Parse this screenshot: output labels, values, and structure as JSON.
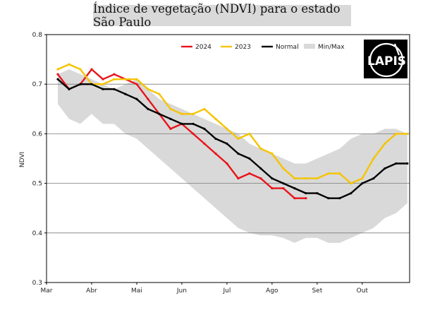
{
  "chart_data": {
    "type": "line",
    "title": "Índice de vegetação (NDVI) para o estado São Paulo",
    "ylabel": "NDVI",
    "xlabel": "",
    "ylim": [
      0.3,
      0.8
    ],
    "xlim": [
      0,
      8.05
    ],
    "yticks": [
      0.3,
      0.4,
      0.5,
      0.6,
      0.7,
      0.8
    ],
    "ytick_labels": [
      "0.3",
      "0.4",
      "0.5",
      "0.6",
      "0.7",
      "0.8"
    ],
    "xticks": [
      0,
      1,
      2,
      3,
      4,
      5,
      6,
      7
    ],
    "xtick_labels": [
      "Mar",
      "Abr",
      "Mai",
      "Jun",
      "Jul",
      "Ago",
      "Set",
      "Out"
    ],
    "grid": "horizontal",
    "legend_position": "top-right",
    "band": {
      "name": "Min/Max",
      "color": "#d9d9d9",
      "x": [
        0.25,
        0.5,
        0.75,
        1.0,
        1.25,
        1.5,
        1.75,
        2.0,
        2.25,
        2.5,
        2.75,
        3.0,
        3.25,
        3.5,
        3.75,
        4.0,
        4.25,
        4.5,
        4.75,
        5.0,
        5.25,
        5.5,
        5.75,
        6.0,
        6.25,
        6.5,
        6.75,
        7.0,
        7.25,
        7.5,
        7.75,
        8.0
      ],
      "min": [
        0.66,
        0.63,
        0.62,
        0.64,
        0.62,
        0.62,
        0.6,
        0.59,
        0.57,
        0.55,
        0.53,
        0.51,
        0.49,
        0.47,
        0.45,
        0.43,
        0.41,
        0.4,
        0.395,
        0.395,
        0.39,
        0.38,
        0.39,
        0.39,
        0.38,
        0.38,
        0.39,
        0.4,
        0.41,
        0.43,
        0.44,
        0.46
      ],
      "max": [
        0.72,
        0.73,
        0.72,
        0.71,
        0.7,
        0.69,
        0.7,
        0.71,
        0.69,
        0.67,
        0.66,
        0.65,
        0.64,
        0.63,
        0.62,
        0.61,
        0.6,
        0.58,
        0.57,
        0.56,
        0.55,
        0.54,
        0.54,
        0.55,
        0.56,
        0.57,
        0.59,
        0.6,
        0.6,
        0.61,
        0.61,
        0.6
      ]
    },
    "series": [
      {
        "name": "2024",
        "color": "#e8141b",
        "x": [
          0.25,
          0.5,
          0.75,
          1.0,
          1.25,
          1.5,
          1.75,
          2.0,
          2.25,
          2.5,
          2.75,
          3.0,
          3.25,
          3.5,
          3.75,
          4.0,
          4.25,
          4.5,
          4.75,
          5.0,
          5.25,
          5.5,
          5.75
        ],
        "values": [
          0.72,
          0.69,
          0.7,
          0.73,
          0.71,
          0.72,
          0.71,
          0.7,
          0.67,
          0.64,
          0.61,
          0.62,
          0.6,
          0.58,
          0.56,
          0.54,
          0.51,
          0.52,
          0.51,
          0.49,
          0.49,
          0.47,
          0.47
        ]
      },
      {
        "name": "2023",
        "color": "#f5c400",
        "x": [
          0.25,
          0.5,
          0.75,
          1.0,
          1.25,
          1.5,
          1.75,
          2.0,
          2.25,
          2.5,
          2.75,
          3.0,
          3.25,
          3.5,
          3.75,
          4.0,
          4.25,
          4.5,
          4.75,
          5.0,
          5.25,
          5.5,
          5.75,
          6.0,
          6.25,
          6.5,
          6.75,
          7.0,
          7.25,
          7.5,
          7.75,
          8.0
        ],
        "values": [
          0.73,
          0.74,
          0.73,
          0.7,
          0.7,
          0.71,
          0.71,
          0.71,
          0.69,
          0.68,
          0.65,
          0.64,
          0.64,
          0.65,
          0.63,
          0.61,
          0.59,
          0.6,
          0.57,
          0.56,
          0.53,
          0.51,
          0.51,
          0.51,
          0.52,
          0.52,
          0.5,
          0.51,
          0.55,
          0.58,
          0.6,
          0.6
        ]
      },
      {
        "name": "Normal",
        "color": "#000000",
        "x": [
          0.25,
          0.5,
          0.75,
          1.0,
          1.25,
          1.5,
          1.75,
          2.0,
          2.25,
          2.5,
          2.75,
          3.0,
          3.25,
          3.5,
          3.75,
          4.0,
          4.25,
          4.5,
          4.75,
          5.0,
          5.25,
          5.5,
          5.75,
          6.0,
          6.25,
          6.5,
          6.75,
          7.0,
          7.25,
          7.5,
          7.75,
          8.0
        ],
        "values": [
          0.71,
          0.69,
          0.7,
          0.7,
          0.69,
          0.69,
          0.68,
          0.67,
          0.65,
          0.64,
          0.63,
          0.62,
          0.62,
          0.61,
          0.59,
          0.58,
          0.56,
          0.55,
          0.53,
          0.51,
          0.5,
          0.49,
          0.48,
          0.48,
          0.47,
          0.47,
          0.48,
          0.5,
          0.51,
          0.53,
          0.54,
          0.54
        ]
      }
    ]
  },
  "logo": {
    "text": "LAPIS",
    "icon_name": "lapis-logo"
  }
}
